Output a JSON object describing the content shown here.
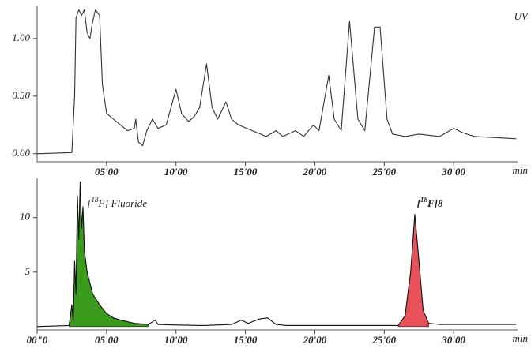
{
  "chart_data": [
    {
      "type": "line",
      "label": "UV",
      "xlabel": "min",
      "x": [
        0,
        2.5,
        2.7,
        2.8,
        3.0,
        3.2,
        3.4,
        3.6,
        3.8,
        4.0,
        4.2,
        4.5,
        4.7,
        5.0,
        5.5,
        6.0,
        6.5,
        7.0,
        7.1,
        7.3,
        7.6,
        7.9,
        8.3,
        8.7,
        9.3,
        10.0,
        10.4,
        10.9,
        11.3,
        11.7,
        12.2,
        12.6,
        13.0,
        13.6,
        14.0,
        14.5,
        15.5,
        16.5,
        17.2,
        17.7,
        18.6,
        19.2,
        19.9,
        20.3,
        21.0,
        21.4,
        21.9,
        22.5,
        23.1,
        23.6,
        24.3,
        24.7,
        25.2,
        25.6,
        26.5,
        27.5,
        29.0,
        30.0,
        30.7,
        31.5,
        34.5
      ],
      "series": [
        {
          "color": "#333333",
          "values": [
            0.0,
            0.01,
            0.5,
            1.18,
            1.25,
            1.2,
            1.25,
            1.05,
            1.0,
            1.15,
            1.25,
            1.2,
            0.6,
            0.35,
            0.3,
            0.25,
            0.2,
            0.22,
            0.3,
            0.1,
            0.07,
            0.2,
            0.3,
            0.22,
            0.25,
            0.56,
            0.35,
            0.28,
            0.32,
            0.4,
            0.78,
            0.4,
            0.3,
            0.45,
            0.3,
            0.25,
            0.2,
            0.15,
            0.2,
            0.15,
            0.2,
            0.15,
            0.25,
            0.2,
            0.68,
            0.3,
            0.2,
            1.15,
            0.3,
            0.2,
            1.1,
            1.1,
            0.3,
            0.17,
            0.15,
            0.17,
            0.15,
            0.22,
            0.18,
            0.15,
            0.13
          ]
        }
      ],
      "xlim": [
        0,
        34.6
      ],
      "ylim": [
        -0.07,
        1.28
      ],
      "xticks": [
        {
          "value": 5,
          "label": "05'00"
        },
        {
          "value": 10,
          "label": "10'00"
        },
        {
          "value": 15,
          "label": "15'00"
        },
        {
          "value": 20,
          "label": "20'00"
        },
        {
          "value": 25,
          "label": "25'00"
        },
        {
          "value": 30,
          "label": "30'00"
        }
      ],
      "yticks": [
        {
          "value": 0,
          "label": "0.00"
        },
        {
          "value": 0.5,
          "label": "0.50"
        },
        {
          "value": 1,
          "label": "1.00"
        }
      ]
    },
    {
      "type": "line",
      "xlabel": "min",
      "x": [
        0,
        2.3,
        2.5,
        2.6,
        2.7,
        2.8,
        2.9,
        3.0,
        3.1,
        3.2,
        3.3,
        3.4,
        3.6,
        3.8,
        4.0,
        4.5,
        5.0,
        5.5,
        6.0,
        7.0,
        8.0,
        8.5,
        8.7,
        10,
        12,
        14,
        14.7,
        15.2,
        16.0,
        16.6,
        17.2,
        18,
        26.0,
        26.5,
        26.9,
        27.2,
        27.5,
        27.8,
        28.2,
        29,
        34.5
      ],
      "series": [
        {
          "color": "#3a9a1c",
          "fill": true,
          "values": [
            null,
            0.1,
            2,
            0.5,
            6,
            3,
            12,
            8,
            13.3,
            9,
            11,
            7,
            5,
            4,
            3,
            2,
            1.2,
            0.8,
            0.6,
            0.3,
            0.2,
            null,
            null,
            null,
            null,
            null,
            null,
            null,
            null,
            null,
            null,
            null,
            null,
            null,
            null,
            null,
            null,
            null,
            null,
            null,
            null
          ]
        },
        {
          "color": "#e8505a",
          "fill": true,
          "values": [
            null,
            null,
            null,
            null,
            null,
            null,
            null,
            null,
            null,
            null,
            null,
            null,
            null,
            null,
            null,
            null,
            null,
            null,
            null,
            null,
            null,
            null,
            null,
            null,
            null,
            null,
            null,
            null,
            null,
            null,
            null,
            null,
            0.1,
            1,
            5,
            10.3,
            6,
            1.5,
            0.3,
            null,
            null
          ]
        },
        {
          "color": "#111111",
          "values": [
            0,
            0.1,
            2,
            0.5,
            6,
            3,
            12,
            8,
            13.3,
            9,
            11,
            7,
            5,
            4,
            3,
            2,
            1.2,
            0.8,
            0.6,
            0.3,
            0.2,
            0.6,
            0.2,
            0.15,
            0.1,
            0.2,
            0.6,
            0.3,
            0.7,
            0.8,
            0.2,
            0.1,
            0.1,
            1,
            5,
            10.3,
            6,
            1.5,
            0.3,
            0.2,
            0.2
          ]
        }
      ],
      "annotations": [
        {
          "prefix": "[",
          "sup": "18",
          "text": "F] Fluoride"
        },
        {
          "prefix": "[",
          "sup": "18",
          "text": "F]8"
        }
      ],
      "xlim": [
        0,
        34.6
      ],
      "ylim": [
        -0.3,
        13.6
      ],
      "xticks": [
        {
          "value": 0,
          "label": "00\"0"
        },
        {
          "value": 5,
          "label": "05'00"
        },
        {
          "value": 10,
          "label": "10'00"
        },
        {
          "value": 15,
          "label": "15'00"
        },
        {
          "value": 20,
          "label": "20'00"
        },
        {
          "value": 25,
          "label": "25'00"
        },
        {
          "value": 30,
          "label": "30'00"
        }
      ],
      "yticks": [
        5,
        10
      ]
    }
  ]
}
